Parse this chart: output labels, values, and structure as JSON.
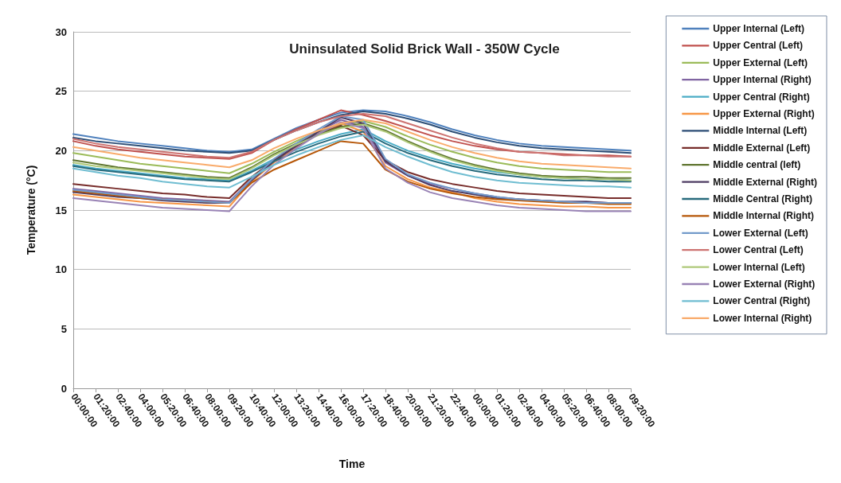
{
  "chart_data": {
    "type": "line",
    "title": "Uninsulated Solid Brick Wall - 350W Cycle",
    "xlabel": "Time",
    "ylabel": "Temperature (°C)",
    "categories": [
      "00:00:00",
      "01:20:00",
      "02:40:00",
      "04:00:00",
      "05:20:00",
      "06:40:00",
      "08:00:00",
      "09:20:00",
      "10:40:00",
      "12:00:00",
      "13:20:00",
      "14:40:00",
      "16:00:00",
      "17:20:00",
      "18:40:00",
      "20:00:00",
      "21:20:00",
      "22:40:00",
      "00:00:00",
      "01:20:00",
      "02:40:00",
      "04:00:00",
      "05:20:00",
      "06:40:00",
      "08:00:00",
      "09:20:00"
    ],
    "ylim": [
      0,
      30
    ],
    "yticks": [
      0,
      5,
      10,
      15,
      20,
      25,
      30
    ],
    "grid": "y",
    "legend": "right",
    "marker": "none",
    "line_style": "solid",
    "series": [
      {
        "name": "Upper Internal (Left)",
        "color": "#4f81bd",
        "values": [
          21.4,
          21.1,
          20.8,
          20.6,
          20.4,
          20.2,
          20.0,
          19.9,
          20.1,
          21.0,
          21.9,
          22.6,
          23.2,
          23.4,
          23.3,
          22.9,
          22.4,
          21.8,
          21.3,
          20.9,
          20.6,
          20.4,
          20.3,
          20.2,
          20.1,
          20.0
        ]
      },
      {
        "name": "Upper Central (Left)",
        "color": "#c0504d",
        "values": [
          20.8,
          20.4,
          20.1,
          19.9,
          19.7,
          19.5,
          19.4,
          19.3,
          19.8,
          20.9,
          21.8,
          22.6,
          23.4,
          23.0,
          22.5,
          21.9,
          21.3,
          20.8,
          20.4,
          20.1,
          19.9,
          19.8,
          19.7,
          19.6,
          19.6,
          19.5
        ]
      },
      {
        "name": "Upper External (Left)",
        "color": "#9bbb59",
        "values": [
          19.8,
          19.5,
          19.2,
          18.9,
          18.7,
          18.5,
          18.3,
          18.1,
          18.9,
          19.9,
          20.8,
          21.6,
          22.2,
          22.5,
          22.0,
          21.2,
          20.5,
          19.9,
          19.4,
          19.0,
          18.7,
          18.5,
          18.4,
          18.3,
          18.2,
          18.2
        ]
      },
      {
        "name": "Upper Internal (Right)",
        "color": "#8064a2",
        "values": [
          16.8,
          16.6,
          16.4,
          16.2,
          16.0,
          15.9,
          15.8,
          15.7,
          17.6,
          19.2,
          20.5,
          21.6,
          22.6,
          22.0,
          19.0,
          17.9,
          17.2,
          16.8,
          16.4,
          16.1,
          15.9,
          15.8,
          15.7,
          15.7,
          15.6,
          15.6
        ]
      },
      {
        "name": "Upper Central (Right)",
        "color": "#4bacc6",
        "values": [
          18.8,
          18.5,
          18.3,
          18.1,
          17.9,
          17.7,
          17.6,
          17.5,
          18.3,
          19.3,
          20.1,
          20.8,
          21.4,
          21.8,
          20.8,
          20.0,
          19.4,
          18.9,
          18.5,
          18.2,
          18.0,
          17.8,
          17.7,
          17.6,
          17.6,
          17.5
        ]
      },
      {
        "name": "Upper External (Right)",
        "color": "#f79646",
        "values": [
          16.3,
          16.1,
          15.9,
          15.7,
          15.6,
          15.5,
          15.4,
          15.3,
          17.4,
          19.0,
          20.3,
          21.4,
          22.3,
          21.6,
          18.7,
          17.6,
          16.9,
          16.5,
          16.0,
          15.7,
          15.5,
          15.4,
          15.3,
          15.3,
          15.2,
          15.2
        ]
      },
      {
        "name": "Middle Internal (Left)",
        "color": "#2c4d75",
        "values": [
          21.1,
          20.8,
          20.6,
          20.4,
          20.2,
          20.0,
          19.9,
          19.8,
          20.0,
          20.9,
          21.7,
          22.4,
          23.0,
          23.3,
          23.1,
          22.7,
          22.2,
          21.6,
          21.1,
          20.7,
          20.4,
          20.2,
          20.1,
          20.0,
          19.9,
          19.8
        ]
      },
      {
        "name": "Middle External (Left)",
        "color": "#772c2a",
        "values": [
          17.2,
          17.0,
          16.8,
          16.6,
          16.4,
          16.3,
          16.1,
          16.0,
          17.8,
          19.2,
          20.4,
          21.4,
          22.1,
          21.3,
          19.2,
          18.2,
          17.6,
          17.2,
          16.9,
          16.6,
          16.4,
          16.3,
          16.2,
          16.1,
          16.0,
          16.0
        ]
      },
      {
        "name": "Middle central (left)",
        "color": "#5f7530",
        "values": [
          19.2,
          18.9,
          18.6,
          18.4,
          18.2,
          18.0,
          17.8,
          17.7,
          18.6,
          19.7,
          20.6,
          21.4,
          22.0,
          22.3,
          21.7,
          20.8,
          20.0,
          19.3,
          18.8,
          18.4,
          18.1,
          17.9,
          17.8,
          17.8,
          17.7,
          17.7
        ]
      },
      {
        "name": "Middle External (Right)",
        "color": "#4d3b62",
        "values": [
          16.5,
          16.3,
          16.1,
          16.0,
          15.8,
          15.7,
          15.6,
          15.6,
          17.5,
          19.1,
          20.4,
          21.6,
          22.8,
          22.3,
          19.1,
          17.9,
          17.1,
          16.6,
          16.3,
          16.0,
          15.9,
          15.8,
          15.7,
          15.7,
          15.6,
          15.6
        ]
      },
      {
        "name": "Middle Central (Right)",
        "color": "#276a7c",
        "values": [
          18.7,
          18.4,
          18.2,
          18.0,
          17.8,
          17.6,
          17.5,
          17.4,
          18.2,
          19.1,
          19.9,
          20.6,
          21.2,
          21.6,
          20.6,
          19.8,
          19.2,
          18.7,
          18.3,
          18.0,
          17.8,
          17.6,
          17.5,
          17.5,
          17.4,
          17.4
        ]
      },
      {
        "name": "Middle Internal (Right)",
        "color": "#b65708",
        "values": [
          16.6,
          16.4,
          16.2,
          16.0,
          15.9,
          15.8,
          15.7,
          15.6,
          17.3,
          18.4,
          19.2,
          20.0,
          20.8,
          20.6,
          18.4,
          17.4,
          16.8,
          16.4,
          16.1,
          15.9,
          15.8,
          15.7,
          15.6,
          15.6,
          15.5,
          15.5
        ]
      },
      {
        "name": "Lower External (Left)",
        "color": "#729aca",
        "values": [
          16.7,
          16.5,
          16.3,
          16.1,
          15.9,
          15.8,
          15.7,
          15.6,
          17.6,
          19.3,
          20.6,
          21.8,
          22.9,
          22.6,
          19.3,
          18.0,
          17.3,
          16.8,
          16.4,
          16.1,
          15.9,
          15.8,
          15.7,
          15.6,
          15.6,
          15.6
        ]
      },
      {
        "name": "Lower Central (Left)",
        "color": "#cd7371",
        "values": [
          21.0,
          20.6,
          20.3,
          20.1,
          19.9,
          19.7,
          19.5,
          19.4,
          19.9,
          20.9,
          21.7,
          22.4,
          22.9,
          23.1,
          22.9,
          22.3,
          21.7,
          21.1,
          20.6,
          20.2,
          19.9,
          19.8,
          19.6,
          19.6,
          19.5,
          19.5
        ]
      },
      {
        "name": "Lower Internal (Left)",
        "color": "#afc97a",
        "values": [
          19.0,
          18.7,
          18.5,
          18.3,
          18.1,
          17.9,
          17.7,
          17.6,
          18.5,
          19.6,
          20.5,
          21.3,
          21.9,
          22.2,
          21.6,
          20.7,
          19.9,
          19.2,
          18.7,
          18.3,
          18.0,
          17.8,
          17.7,
          17.6,
          17.6,
          17.5
        ]
      },
      {
        "name": "Lower External (Right)",
        "color": "#9983b5",
        "values": [
          16.0,
          15.8,
          15.6,
          15.4,
          15.2,
          15.1,
          15.0,
          14.9,
          17.0,
          18.8,
          20.2,
          21.4,
          22.4,
          21.9,
          18.5,
          17.3,
          16.5,
          16.0,
          15.7,
          15.4,
          15.2,
          15.1,
          15.0,
          14.9,
          14.9,
          14.9
        ]
      },
      {
        "name": "Lower Central (Right)",
        "color": "#6fbdd1",
        "values": [
          18.5,
          18.2,
          17.9,
          17.7,
          17.4,
          17.2,
          17.0,
          16.9,
          17.8,
          18.8,
          19.6,
          20.3,
          20.9,
          21.3,
          20.3,
          19.5,
          18.8,
          18.2,
          17.8,
          17.5,
          17.3,
          17.2,
          17.1,
          17.0,
          17.0,
          16.9
        ]
      },
      {
        "name": "Lower Internal (Right)",
        "color": "#f9ab6b",
        "values": [
          20.3,
          20.0,
          19.7,
          19.4,
          19.2,
          19.0,
          18.8,
          18.6,
          19.2,
          20.2,
          21.0,
          21.7,
          22.3,
          22.6,
          22.3,
          21.6,
          20.9,
          20.3,
          19.8,
          19.4,
          19.1,
          18.9,
          18.8,
          18.7,
          18.6,
          18.5
        ]
      }
    ]
  }
}
